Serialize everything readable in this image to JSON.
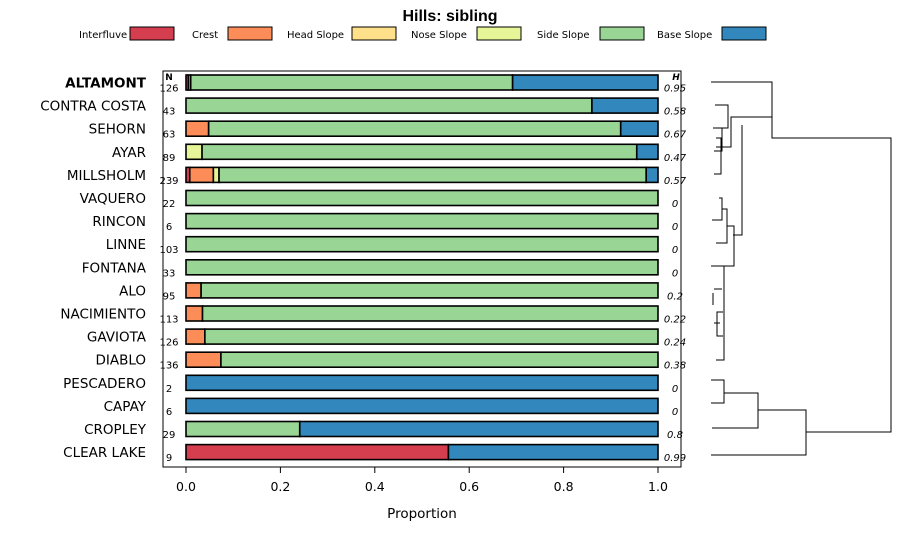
{
  "chart_data": {
    "type": "bar",
    "orientation": "horizontal",
    "stacked": true,
    "title": "Hills: sibling",
    "xlabel": "Proportion",
    "ylabel": "",
    "xlim": [
      0,
      1
    ],
    "xticks": [
      "0.0",
      "0.2",
      "0.4",
      "0.6",
      "0.8",
      "1.0"
    ],
    "n_header": "N",
    "h_header": "H",
    "highlight": "ALTAMONT",
    "legend": [
      {
        "name": "Interfluve",
        "color": "#D53E4F"
      },
      {
        "name": "Crest",
        "color": "#FC8D59"
      },
      {
        "name": "Head Slope",
        "color": "#FEE08B"
      },
      {
        "name": "Nose Slope",
        "color": "#E6F598"
      },
      {
        "name": "Side Slope",
        "color": "#99D594"
      },
      {
        "name": "Base Slope",
        "color": "#3288BD"
      }
    ],
    "categories": [
      "ALTAMONT",
      "CONTRA COSTA",
      "SEHORN",
      "AYAR",
      "MILLSHOLM",
      "VAQUERO",
      "RINCON",
      "LINNE",
      "FONTANA",
      "ALO",
      "NACIMIENTO",
      "GAVIOTA",
      "DIABLO",
      "PESCADERO",
      "CAPAY",
      "CROPLEY",
      "CLEAR LAKE"
    ],
    "n": [
      "126",
      "43",
      "63",
      "89",
      "239",
      "22",
      "6",
      "103",
      "33",
      "95",
      "113",
      "126",
      "136",
      "2",
      "6",
      "29",
      "9"
    ],
    "h": [
      "0.95",
      "0.58",
      "0.67",
      "0.47",
      "0.57",
      "0",
      "0",
      "0",
      "0",
      "0.2",
      "0.22",
      "0.24",
      "0.38",
      "0",
      "0",
      "0.8",
      "0.99"
    ],
    "series": [
      {
        "name": "Interfluve",
        "values": [
          0.005,
          0,
          0,
          0,
          0.008,
          0,
          0,
          0,
          0,
          0,
          0,
          0,
          0,
          0,
          0,
          0,
          0.556
        ]
      },
      {
        "name": "Crest",
        "values": [
          0.005,
          0,
          0.048,
          0,
          0.05,
          0,
          0,
          0,
          0,
          0.032,
          0.035,
          0.04,
          0.074,
          0,
          0,
          0,
          0
        ]
      },
      {
        "name": "Head Slope",
        "values": [
          0,
          0,
          0,
          0,
          0,
          0,
          0,
          0,
          0,
          0,
          0,
          0,
          0,
          0,
          0,
          0,
          0
        ]
      },
      {
        "name": "Nose Slope",
        "values": [
          0,
          0,
          0,
          0.034,
          0.012,
          0,
          0,
          0,
          0,
          0,
          0,
          0,
          0,
          0,
          0,
          0,
          0
        ]
      },
      {
        "name": "Side Slope",
        "values": [
          0.682,
          0.86,
          0.873,
          0.921,
          0.905,
          1,
          1,
          1,
          1,
          0.968,
          0.965,
          0.96,
          0.926,
          0,
          0,
          0.241,
          0
        ]
      },
      {
        "name": "Base Slope",
        "values": [
          0.308,
          0.14,
          0.079,
          0.045,
          0.025,
          0,
          0,
          0,
          0,
          0,
          0,
          0,
          0,
          1,
          1,
          0.759,
          0.444
        ]
      }
    ]
  }
}
